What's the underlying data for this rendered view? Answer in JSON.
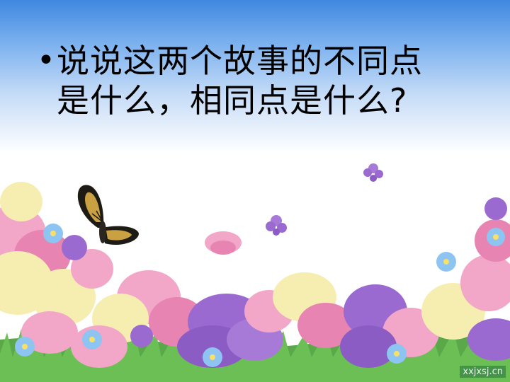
{
  "slide": {
    "bullet_symbol": "•",
    "line1": "说说这两个故事的不同点",
    "line2": "是什么，相同点是什么?"
  },
  "watermark": {
    "text": "xxjxsj.cn"
  },
  "colors": {
    "sky_top": "#3f88e0",
    "background": "#ffffff",
    "pink_flower": "#f2a6c8",
    "yellow_flower": "#f6eeb0",
    "purple_flower": "#9a6ad0",
    "blue_flower": "#8ec4f2",
    "grass": "#5aa84a"
  },
  "icons": {
    "butterfly": "butterfly-icon",
    "flowers": "flower-field"
  }
}
